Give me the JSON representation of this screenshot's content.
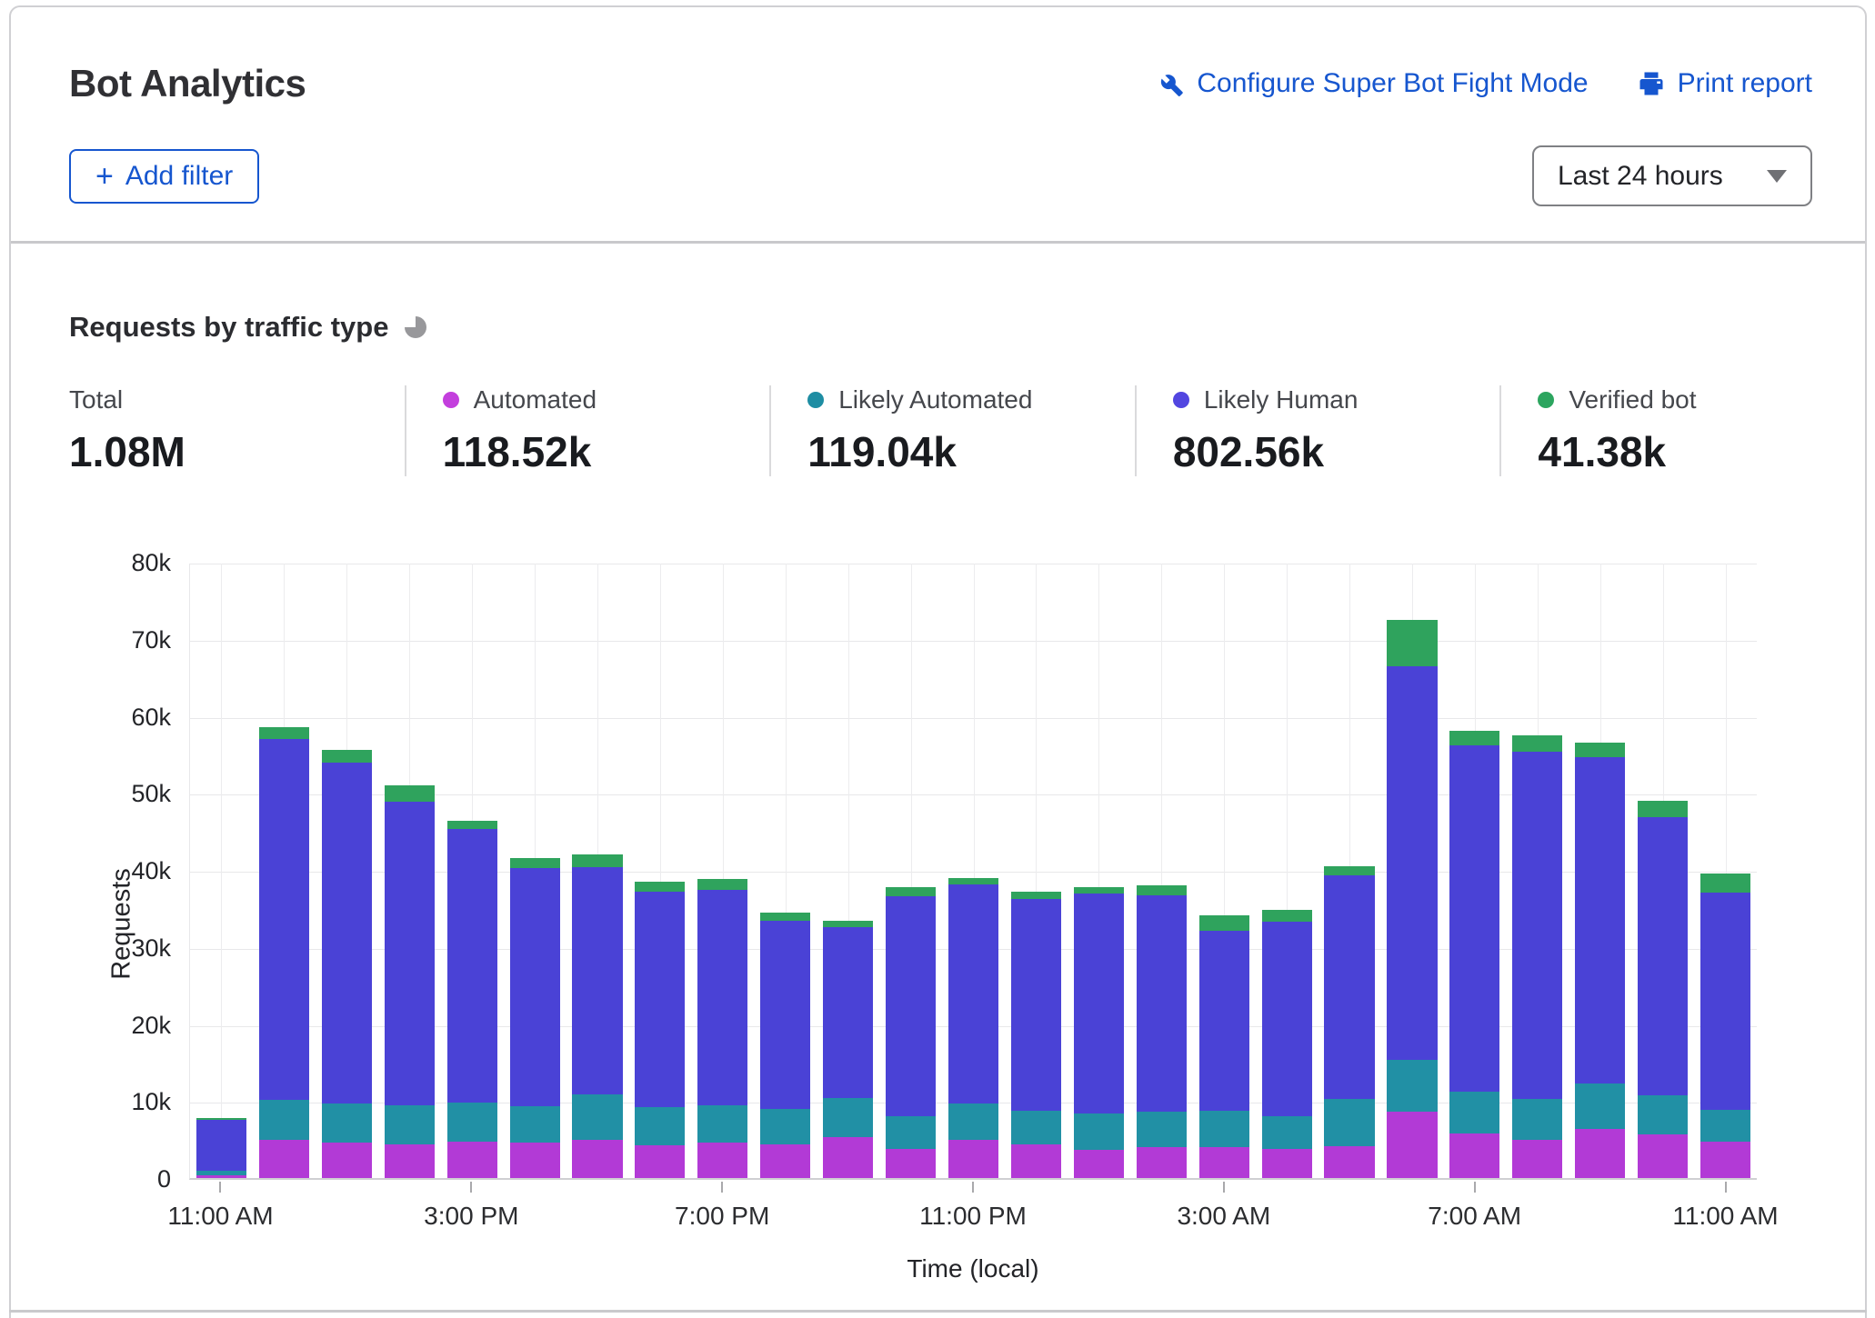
{
  "header": {
    "title": "Bot Analytics",
    "configure_link": "Configure Super Bot Fight Mode",
    "print_link": "Print report",
    "add_filter_plus": "+",
    "add_filter_label": "Add filter",
    "time_range": "Last 24 hours"
  },
  "section": {
    "title": "Requests by traffic type"
  },
  "stats": [
    {
      "label": "Total",
      "value": "1.08M",
      "color": null
    },
    {
      "label": "Automated",
      "value": "118.52k",
      "color": "#c33fdd"
    },
    {
      "label": "Likely Automated",
      "value": "119.04k",
      "color": "#1e8da3"
    },
    {
      "label": "Likely Human",
      "value": "802.56k",
      "color": "#5246e0"
    },
    {
      "label": "Verified bot",
      "value": "41.38k",
      "color": "#2ca55f"
    }
  ],
  "chart_data": {
    "type": "bar",
    "stacked": true,
    "title": "Requests by traffic type",
    "xlabel": "Time (local)",
    "ylabel": "Requests",
    "ylim": [
      0,
      80000
    ],
    "grid": true,
    "n_bars": 25,
    "y_tick_labels": [
      "0",
      "10k",
      "20k",
      "30k",
      "40k",
      "50k",
      "60k",
      "70k",
      "80k"
    ],
    "x_tick_labels": [
      "11:00 AM",
      "3:00 PM",
      "7:00 PM",
      "11:00 PM",
      "3:00 AM",
      "7:00 AM",
      "11:00 AM"
    ],
    "x_tick_slots": [
      0,
      4,
      8,
      12,
      16,
      20,
      24
    ],
    "series": [
      {
        "name": "Automated",
        "color": "#b23ad6",
        "values": [
          400,
          5000,
          4600,
          4400,
          4700,
          4600,
          5000,
          4300,
          4600,
          4400,
          5300,
          3800,
          4900,
          4400,
          3700,
          4000,
          4000,
          3800,
          4100,
          8600,
          5800,
          5000,
          6400,
          5700,
          4700
        ]
      },
      {
        "name": "Likely Automated",
        "color": "#2190a5",
        "values": [
          600,
          5200,
          5100,
          5100,
          5100,
          4700,
          5900,
          4900,
          4800,
          4600,
          5100,
          4200,
          4800,
          4300,
          4700,
          4600,
          4700,
          4200,
          6200,
          6700,
          5400,
          5300,
          5900,
          5000,
          4100
        ]
      },
      {
        "name": "Likely Human",
        "color": "#4a42d6",
        "values": [
          6500,
          46800,
          44200,
          39300,
          35500,
          30900,
          29400,
          28000,
          28000,
          24400,
          22200,
          28600,
          28400,
          27500,
          28500,
          28100,
          23400,
          25300,
          29000,
          51100,
          45000,
          45000,
          42300,
          36200,
          28200
        ]
      },
      {
        "name": "Verified bot",
        "color": "#2fa35d",
        "values": [
          300,
          1500,
          1700,
          2200,
          1100,
          1300,
          1700,
          1300,
          1400,
          1100,
          800,
          1200,
          800,
          1000,
          900,
          1300,
          2000,
          1500,
          1200,
          6000,
          1800,
          2200,
          1900,
          2100,
          2500
        ]
      }
    ]
  }
}
